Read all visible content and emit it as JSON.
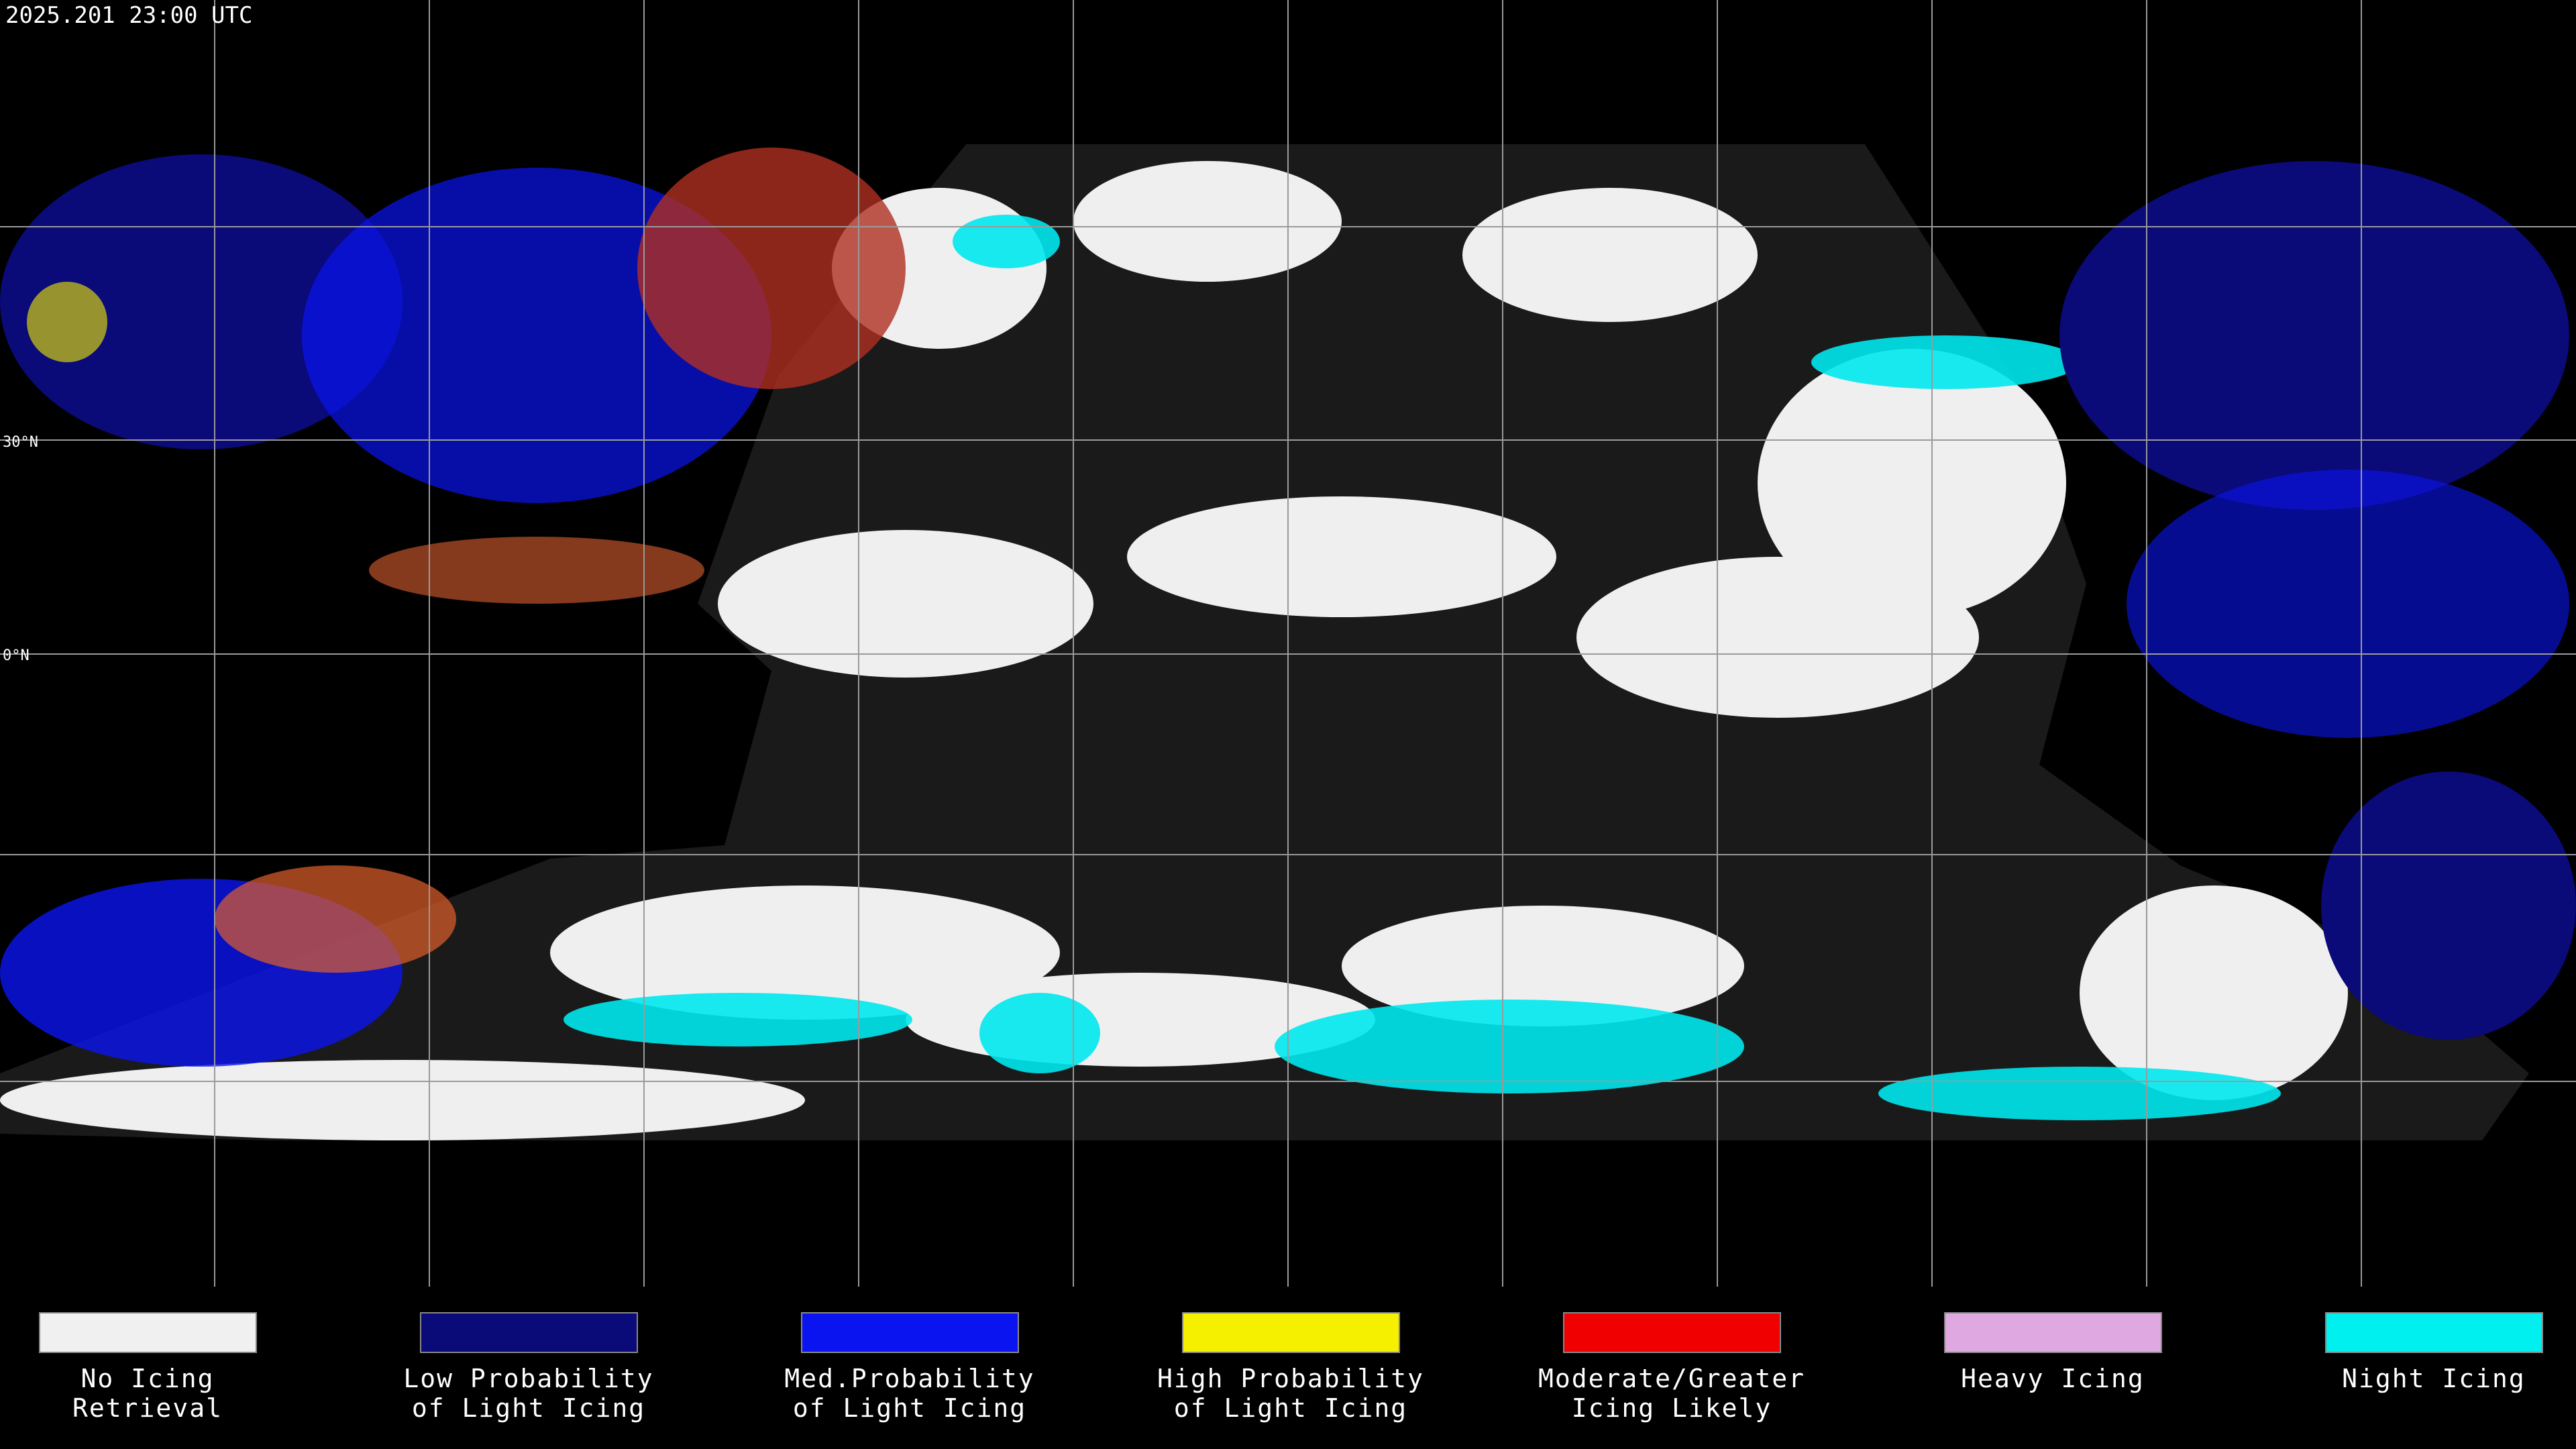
{
  "header": {
    "title": "2025.201 23:00 UTC"
  },
  "map": {
    "lat_labels": [
      "30°N",
      "0°N"
    ]
  },
  "legend": {
    "items": [
      {
        "lines": [
          "No Icing",
          "Retrieval"
        ],
        "color": "#f0f0f0"
      },
      {
        "lines": [
          "Low Probability",
          "of Light Icing"
        ],
        "color": "#0a0a78"
      },
      {
        "lines": [
          "Med.Probability",
          "of Light Icing"
        ],
        "color": "#0a14f0"
      },
      {
        "lines": [
          "High Probability",
          "of Light Icing"
        ],
        "color": "#f5f000"
      },
      {
        "lines": [
          "Moderate/Greater",
          "Icing Likely"
        ],
        "color": "#f00000"
      },
      {
        "lines": [
          "Heavy Icing"
        ],
        "color": "#e0a8e0"
      },
      {
        "lines": [
          "Night Icing"
        ],
        "color": "#00f0f0"
      }
    ]
  }
}
